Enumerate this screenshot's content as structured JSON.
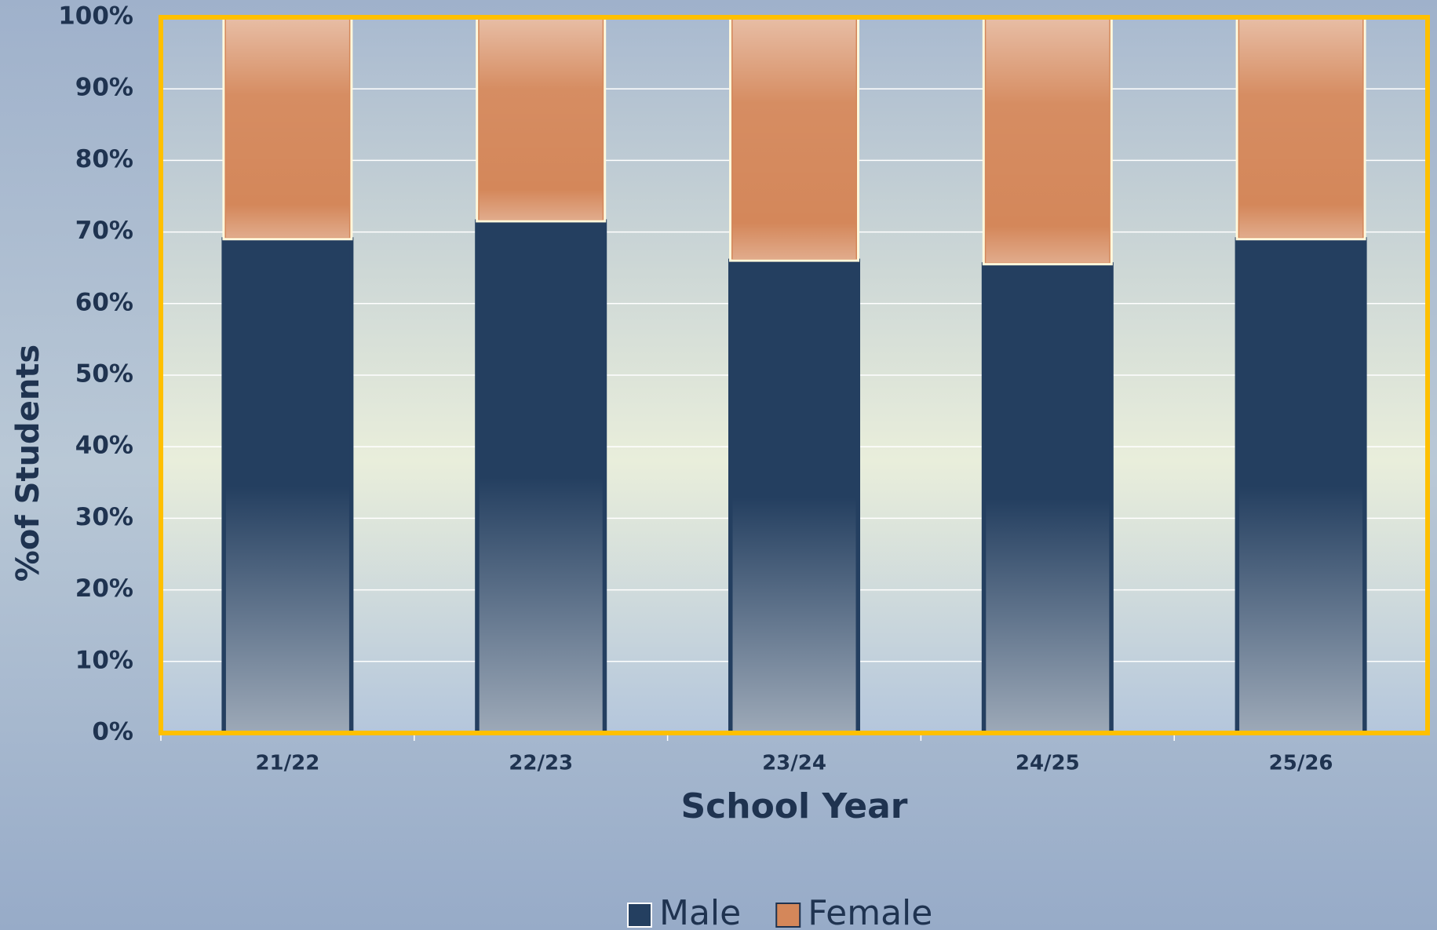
{
  "chart_data": {
    "type": "stacked_bar",
    "categories": [
      "21/22",
      "22/23",
      "23/24",
      "24/25",
      "25/26"
    ],
    "series": [
      {
        "name": "Male",
        "color": "#243f60",
        "values": [
          69,
          71.5,
          66,
          65.5,
          69
        ]
      },
      {
        "name": "Female",
        "color": "#d4875a",
        "values": [
          31,
          28.5,
          34,
          34.5,
          31
        ]
      }
    ],
    "ylim": [
      0,
      100
    ],
    "yticks": [
      {
        "value": 0,
        "label": "0%"
      },
      {
        "value": 10,
        "label": "10%"
      },
      {
        "value": 20,
        "label": "20%"
      },
      {
        "value": 30,
        "label": "30%"
      },
      {
        "value": 40,
        "label": "40%"
      },
      {
        "value": 50,
        "label": "50%"
      },
      {
        "value": 60,
        "label": "60%"
      },
      {
        "value": 70,
        "label": "70%"
      },
      {
        "value": 80,
        "label": "80%"
      },
      {
        "value": 90,
        "label": "90%"
      },
      {
        "value": 100,
        "label": "100%"
      }
    ],
    "xlabel": "School Year",
    "ylabel": "%of Students",
    "grid": true,
    "legend": "bottom"
  }
}
